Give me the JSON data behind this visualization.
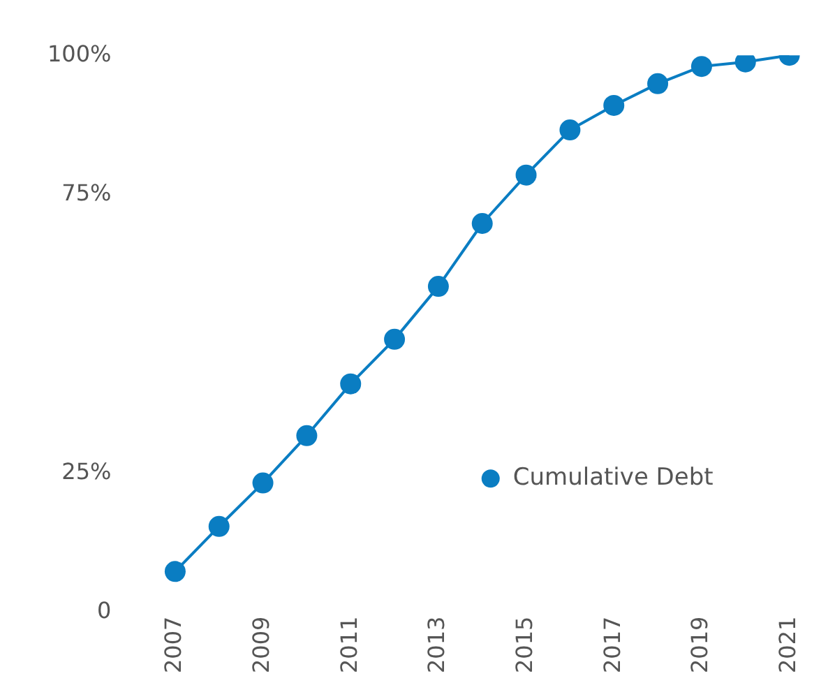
{
  "chart_data": {
    "type": "line",
    "categories": [
      "2007",
      null,
      "2009",
      null,
      "2011",
      null,
      "2013",
      null,
      "2015",
      null,
      "2017",
      null,
      "2019",
      null,
      "2021"
    ],
    "series": [
      {
        "name": "Cumulative Debt",
        "color": "#0a7dc2",
        "values": [
          7.3,
          15.4,
          23.2,
          31.7,
          41.0,
          49.0,
          58.5,
          69.8,
          78.5,
          86.6,
          91.0,
          94.9,
          98.0,
          98.8,
          100
        ]
      }
    ],
    "ylim": [
      0,
      100
    ],
    "yticks": [
      0,
      {
        "value": 25,
        "label": "25%"
      },
      {
        "value": 75,
        "label": "75%"
      },
      {
        "value": 100,
        "label": "100%"
      }
    ],
    "grid": false,
    "legend": "right",
    "marker": "circle",
    "line_style": "solid"
  }
}
